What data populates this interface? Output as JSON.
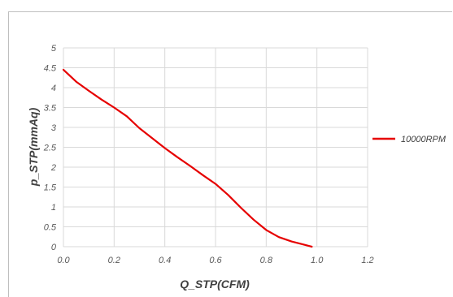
{
  "chart_data": {
    "type": "line",
    "title": "",
    "xlabel": "Q_STP(CFM)",
    "ylabel": "p_STP(mmAq)",
    "xlim": [
      0,
      1.2
    ],
    "ylim": [
      0,
      5
    ],
    "x_ticks": [
      "0.0",
      "0.2",
      "0.4",
      "0.6",
      "0.8",
      "1.0",
      "1.2"
    ],
    "y_ticks": [
      "0",
      "0.5",
      "1",
      "1.5",
      "2",
      "2.5",
      "3",
      "3.5",
      "4",
      "4.5",
      "5"
    ],
    "grid": true,
    "legend_position": "right",
    "series": [
      {
        "name": "10000RPM",
        "color": "#e60000",
        "x": [
          0.0,
          0.05,
          0.1,
          0.15,
          0.2,
          0.25,
          0.3,
          0.35,
          0.4,
          0.45,
          0.5,
          0.55,
          0.6,
          0.65,
          0.7,
          0.75,
          0.8,
          0.85,
          0.9,
          0.95,
          0.98
        ],
        "y": [
          4.45,
          4.15,
          3.92,
          3.7,
          3.5,
          3.28,
          2.98,
          2.73,
          2.48,
          2.25,
          2.03,
          1.8,
          1.58,
          1.3,
          0.98,
          0.68,
          0.42,
          0.24,
          0.13,
          0.05,
          0.0
        ]
      }
    ]
  }
}
